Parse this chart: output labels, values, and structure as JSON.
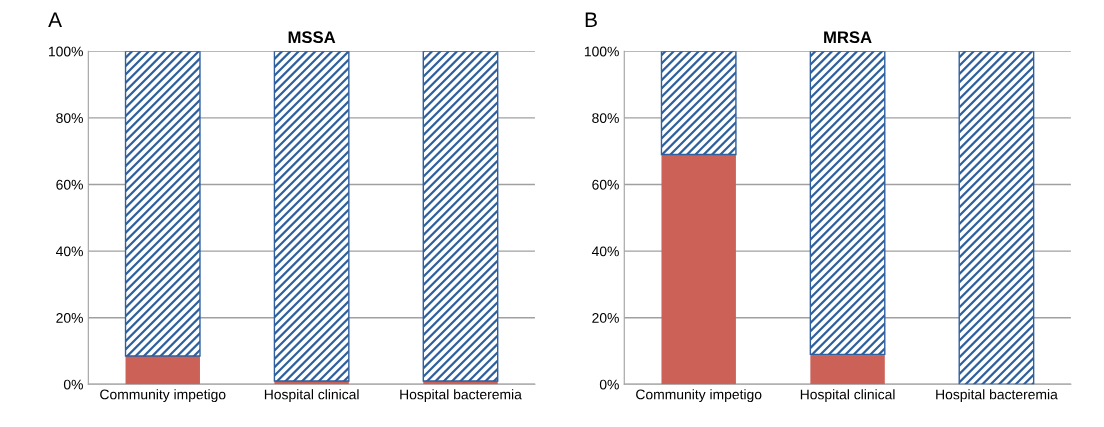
{
  "chart_data": [
    {
      "type": "bar",
      "title": "MSSA",
      "annotations": [
        "A"
      ],
      "categories": [
        "Community impetigo",
        "Hospital clinical",
        "Hospital bacteremia"
      ],
      "stacked": true,
      "series": [
        {
          "color": "#cc6158",
          "values": [
            8.5,
            1,
            1
          ]
        },
        {
          "color": "#2e5f9e",
          "values": [
            91.5,
            99,
            99
          ]
        }
      ],
      "ylim": [
        0,
        100
      ],
      "yticks": [
        {
          "value": 0,
          "label": "0%"
        },
        {
          "value": 20,
          "label": "20%"
        },
        {
          "value": 40,
          "label": "40%"
        },
        {
          "value": 60,
          "label": "60%"
        },
        {
          "value": 80,
          "label": "80%"
        },
        {
          "value": 100,
          "label": "100%"
        }
      ],
      "grid": "y",
      "legend": false
    },
    {
      "type": "bar",
      "title": "MRSA",
      "annotations": [
        "B"
      ],
      "categories": [
        "Community impetigo",
        "Hospital clinical",
        "Hospital bacteremia"
      ],
      "stacked": true,
      "series": [
        {
          "color": "#cc6158",
          "values": [
            69,
            9,
            0
          ]
        },
        {
          "color": "#2e5f9e",
          "values": [
            31,
            91,
            100
          ]
        }
      ],
      "ylim": [
        0,
        100
      ],
      "yticks": [
        {
          "value": 0,
          "label": "0%"
        },
        {
          "value": 20,
          "label": "20%"
        },
        {
          "value": 40,
          "label": "40%"
        },
        {
          "value": 60,
          "label": "60%"
        },
        {
          "value": 80,
          "label": "80%"
        },
        {
          "value": 100,
          "label": "100%"
        }
      ],
      "grid": "y",
      "legend": false
    }
  ]
}
